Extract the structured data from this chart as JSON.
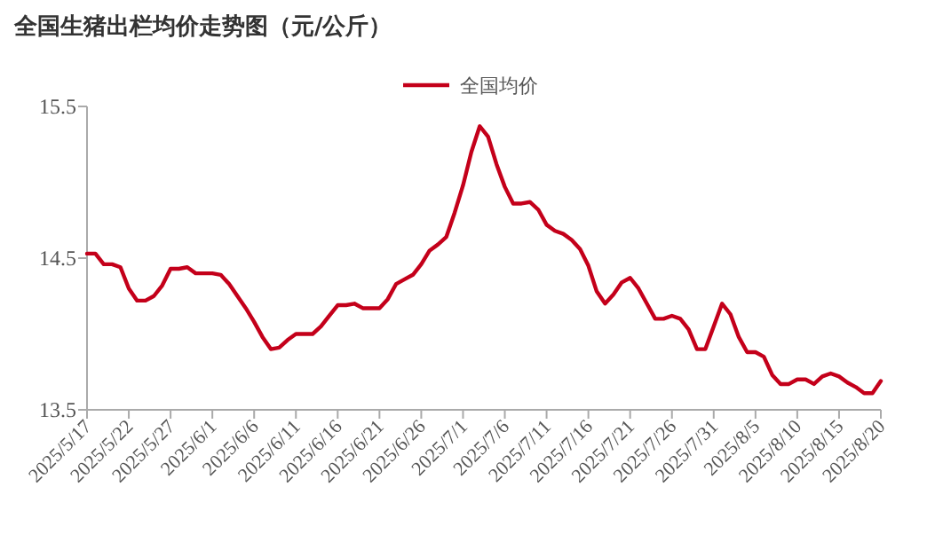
{
  "chart_data": {
    "type": "line",
    "title": "全国生猪出栏均价走势图（元/公斤）",
    "x": [
      "2025-05-17",
      "2025-05-18",
      "2025-05-19",
      "2025-05-20",
      "2025-05-21",
      "2025-05-22",
      "2025-05-23",
      "2025-05-24",
      "2025-05-25",
      "2025-05-26",
      "2025-05-27",
      "2025-05-28",
      "2025-05-29",
      "2025-05-30",
      "2025-05-31",
      "2025-06-01",
      "2025-06-02",
      "2025-06-03",
      "2025-06-04",
      "2025-06-05",
      "2025-06-06",
      "2025-06-07",
      "2025-06-08",
      "2025-06-09",
      "2025-06-10",
      "2025-06-11",
      "2025-06-12",
      "2025-06-13",
      "2025-06-14",
      "2025-06-15",
      "2025-06-16",
      "2025-06-17",
      "2025-06-18",
      "2025-06-19",
      "2025-06-20",
      "2025-06-21",
      "2025-06-22",
      "2025-06-23",
      "2025-06-24",
      "2025-06-25",
      "2025-06-26",
      "2025-06-27",
      "2025-06-28",
      "2025-06-29",
      "2025-06-30",
      "2025-07-01",
      "2025-07-02",
      "2025-07-03",
      "2025-07-04",
      "2025-07-05",
      "2025-07-06",
      "2025-07-07",
      "2025-07-08",
      "2025-07-09",
      "2025-07-10",
      "2025-07-11",
      "2025-07-12",
      "2025-07-13",
      "2025-07-14",
      "2025-07-15",
      "2025-07-16",
      "2025-07-17",
      "2025-07-18",
      "2025-07-19",
      "2025-07-20",
      "2025-07-21",
      "2025-07-22",
      "2025-07-23",
      "2025-07-24",
      "2025-07-25",
      "2025-07-26",
      "2025-07-27",
      "2025-07-28",
      "2025-07-29",
      "2025-07-30",
      "2025-07-31",
      "2025-08-01",
      "2025-08-02",
      "2025-08-03",
      "2025-08-04",
      "2025-08-05",
      "2025-08-06",
      "2025-08-07",
      "2025-08-08",
      "2025-08-09",
      "2025-08-10",
      "2025-08-11",
      "2025-08-12",
      "2025-08-13",
      "2025-08-14",
      "2025-08-15",
      "2025-08-16",
      "2025-08-17",
      "2025-08-18",
      "2025-08-19",
      "2025-08-20"
    ],
    "series": [
      {
        "name": "全国均价",
        "color": "#c4001a",
        "values": [
          14.53,
          14.53,
          14.46,
          14.46,
          14.44,
          14.3,
          14.22,
          14.22,
          14.25,
          14.32,
          14.43,
          14.43,
          14.44,
          14.4,
          14.4,
          14.4,
          14.39,
          14.33,
          14.25,
          14.17,
          14.08,
          13.98,
          13.9,
          13.91,
          13.96,
          14.0,
          14.0,
          14.0,
          14.05,
          14.12,
          14.19,
          14.19,
          14.2,
          14.17,
          14.17,
          14.17,
          14.23,
          14.33,
          14.36,
          14.39,
          14.46,
          14.55,
          14.59,
          14.64,
          14.8,
          14.98,
          15.2,
          15.37,
          15.3,
          15.12,
          14.97,
          14.86,
          14.86,
          14.87,
          14.82,
          14.72,
          14.68,
          14.66,
          14.62,
          14.56,
          14.45,
          14.28,
          14.2,
          14.26,
          14.34,
          14.37,
          14.3,
          14.2,
          14.1,
          14.1,
          14.12,
          14.1,
          14.03,
          13.9,
          13.9,
          14.05,
          14.2,
          14.13,
          13.98,
          13.88,
          13.88,
          13.85,
          13.73,
          13.67,
          13.67,
          13.7,
          13.7,
          13.67,
          13.72,
          13.74,
          13.72,
          13.68,
          13.65,
          13.61,
          13.61,
          13.69
        ]
      }
    ],
    "xlim": [
      "2025-05-17",
      "2025-08-20"
    ],
    "xticks": [
      {
        "value": "2025-05-17",
        "label": "2025/5/17"
      },
      {
        "value": "2025-05-22",
        "label": "2025/5/22"
      },
      {
        "value": "2025-05-27",
        "label": "2025/5/27"
      },
      {
        "value": "2025-06-01",
        "label": "2025/6/1"
      },
      {
        "value": "2025-06-06",
        "label": "2025/6/6"
      },
      {
        "value": "2025-06-11",
        "label": "2025/6/11"
      },
      {
        "value": "2025-06-16",
        "label": "2025/6/16"
      },
      {
        "value": "2025-06-21",
        "label": "2025/6/21"
      },
      {
        "value": "2025-06-26",
        "label": "2025/6/26"
      },
      {
        "value": "2025-07-01",
        "label": "2025/7/1"
      },
      {
        "value": "2025-07-06",
        "label": "2025/7/6"
      },
      {
        "value": "2025-07-11",
        "label": "2025/7/11"
      },
      {
        "value": "2025-07-16",
        "label": "2025/7/16"
      },
      {
        "value": "2025-07-21",
        "label": "2025/7/21"
      },
      {
        "value": "2025-07-26",
        "label": "2025/7/26"
      },
      {
        "value": "2025-07-31",
        "label": "2025/7/31"
      },
      {
        "value": "2025-08-05",
        "label": "2025/8/5"
      },
      {
        "value": "2025-08-10",
        "label": "2025/8/10"
      },
      {
        "value": "2025-08-15",
        "label": "2025/8/15"
      },
      {
        "value": "2025-08-20",
        "label": "2025/8/20"
      }
    ],
    "ylim": [
      13.5,
      15.5
    ],
    "yticks": [
      13.5,
      14.5,
      15.5
    ],
    "grid": false,
    "legend": "top",
    "marker": "none",
    "line_style": "solid"
  }
}
